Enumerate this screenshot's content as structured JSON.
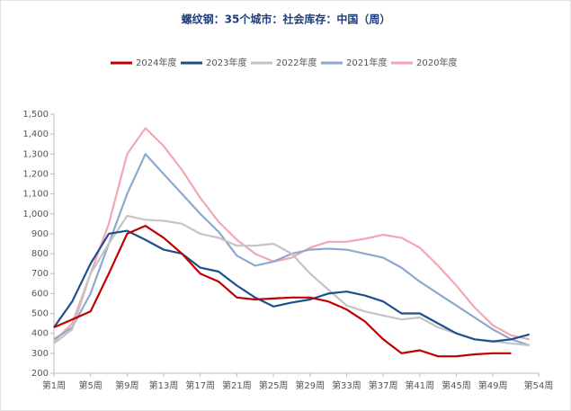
{
  "chart_data": {
    "type": "line",
    "title": "螺纹钢：35个城市：社会库存：中国（周）",
    "x": [
      1,
      3,
      5,
      7,
      9,
      11,
      13,
      15,
      17,
      19,
      21,
      23,
      25,
      27,
      29,
      31,
      33,
      35,
      37,
      39,
      41,
      43,
      45,
      47,
      49,
      51,
      53
    ],
    "xlim": [
      1,
      54
    ],
    "xticks": [
      {
        "value": 1,
        "label": "第1周"
      },
      {
        "value": 5,
        "label": "第5周"
      },
      {
        "value": 9,
        "label": "第9周"
      },
      {
        "value": 13,
        "label": "第13周"
      },
      {
        "value": 17,
        "label": "第17周"
      },
      {
        "value": 21,
        "label": "第21周"
      },
      {
        "value": 25,
        "label": "第25周"
      },
      {
        "value": 29,
        "label": "第29周"
      },
      {
        "value": 33,
        "label": "第33周"
      },
      {
        "value": 37,
        "label": "第37周"
      },
      {
        "value": 41,
        "label": "第41周"
      },
      {
        "value": 45,
        "label": "第45周"
      },
      {
        "value": 49,
        "label": "第49周"
      },
      {
        "value": 54,
        "label": "第54周"
      }
    ],
    "ylim": [
      200,
      1500
    ],
    "yticks": [
      200,
      300,
      400,
      500,
      600,
      700,
      800,
      900,
      {
        "value": 1000,
        "label": "1,000"
      },
      {
        "value": 1100,
        "label": "1,100"
      },
      {
        "value": 1200,
        "label": "1,200"
      },
      {
        "value": 1300,
        "label": "1,300"
      },
      {
        "value": 1400,
        "label": "1,400"
      },
      {
        "value": 1500,
        "label": "1,500"
      }
    ],
    "legend": "top",
    "series": [
      {
        "name": "2024年度",
        "color": "#c00000",
        "values": [
          430,
          470,
          510,
          700,
          900,
          940,
          880,
          800,
          700,
          660,
          580,
          570,
          575,
          580,
          580,
          560,
          520,
          460,
          370,
          300,
          315,
          285,
          285,
          295,
          300,
          300,
          null
        ]
      },
      {
        "name": "2023年度",
        "color": "#1f4e8c",
        "values": [
          430,
          560,
          750,
          900,
          915,
          870,
          820,
          800,
          730,
          710,
          640,
          580,
          535,
          555,
          570,
          600,
          610,
          590,
          560,
          500,
          500,
          450,
          400,
          370,
          360,
          370,
          395
        ]
      },
      {
        "name": "2022年度",
        "color": "#c4c4c4",
        "values": [
          350,
          420,
          700,
          850,
          990,
          970,
          965,
          950,
          900,
          880,
          840,
          840,
          850,
          800,
          700,
          620,
          540,
          510,
          490,
          470,
          480,
          430,
          400,
          370,
          360,
          350,
          340
        ]
      },
      {
        "name": "2021年度",
        "color": "#8ea9cf",
        "values": [
          370,
          430,
          600,
          850,
          1100,
          1300,
          1200,
          1100,
          1000,
          910,
          790,
          740,
          760,
          800,
          820,
          825,
          820,
          800,
          780,
          730,
          660,
          600,
          540,
          480,
          420,
          370,
          340
        ]
      },
      {
        "name": "2020年度",
        "color": "#f2a7b2",
        "values": [
          360,
          450,
          700,
          950,
          1300,
          1430,
          1340,
          1220,
          1080,
          960,
          870,
          800,
          760,
          780,
          830,
          860,
          860,
          875,
          895,
          880,
          830,
          740,
          640,
          530,
          440,
          390,
          370
        ]
      }
    ]
  }
}
